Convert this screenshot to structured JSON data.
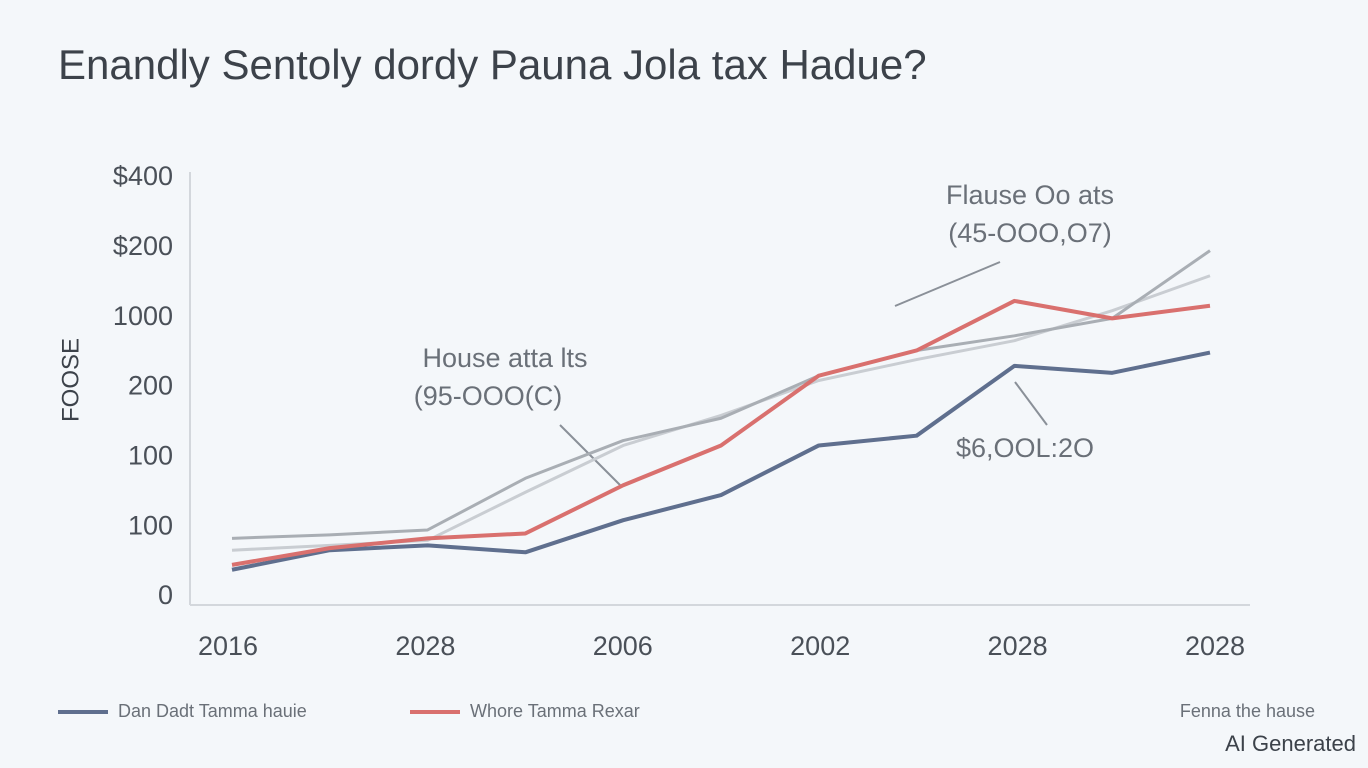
{
  "chart_data": {
    "type": "line",
    "title": "Enandly Sentoly dordy Pauna Jola tax Hadue?",
    "y_axis_label": "FOOSE",
    "y_labels": [
      "0",
      "100",
      "100",
      "200",
      "1000",
      "$200",
      "$400"
    ],
    "x_labels": [
      "2016",
      "2028",
      "2006",
      "2002",
      "2028",
      "2028"
    ],
    "xlim": [
      0,
      5
    ],
    "ylim": [
      0,
      6
    ],
    "x": [
      0,
      0.5,
      1,
      1.5,
      2,
      2.5,
      3,
      3.5,
      4,
      4.5,
      5
    ],
    "series": [
      {
        "name": "Dan Dadt Tamma hauie",
        "color": "#5f6f8e",
        "values": [
          0.39,
          0.67,
          0.74,
          0.64,
          1.1,
          1.46,
          2.17,
          2.31,
          3.31,
          3.21,
          3.5
        ]
      },
      {
        "name": "Whore Tamma Rexar",
        "color": "#d9706e",
        "values": [
          0.46,
          0.7,
          0.84,
          0.91,
          1.6,
          2.17,
          3.17,
          3.53,
          4.24,
          3.99,
          4.17
        ]
      },
      {
        "color": "#a9aeb4",
        "values": [
          0.84,
          0.89,
          0.96,
          1.7,
          2.24,
          2.56,
          3.17,
          3.53,
          3.74,
          3.99,
          4.96
        ]
      },
      {
        "color": "#c9cdd2",
        "values": [
          0.67,
          0.74,
          0.81,
          1.5,
          2.17,
          2.6,
          3.1,
          3.4,
          3.67,
          4.1,
          4.6
        ]
      }
    ],
    "legend_note": "Fenna the hause",
    "annotations": [
      {
        "lines": [
          "Flause Oo ats",
          "(45-OOO,O7)"
        ]
      },
      {
        "lines": [
          "House atta lts",
          "(95-OOO(C)"
        ]
      },
      {
        "lines": [
          "$6,OOL:2O"
        ]
      }
    ],
    "watermark": "AI Generated"
  }
}
